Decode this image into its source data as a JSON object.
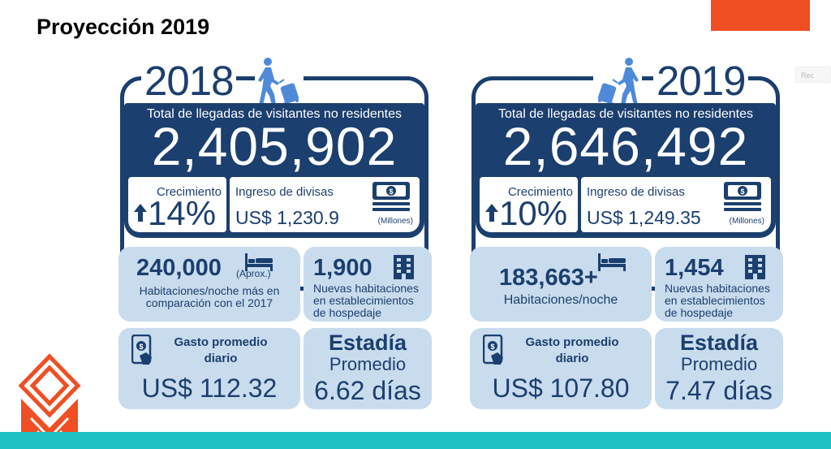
{
  "page": {
    "title": "Proyección 2019",
    "accent_color": "#f04e23",
    "bottom_bar_color": "#1fc1c3",
    "navy": "#1b3f6e",
    "card_color": "#c8dcee",
    "ghost_label": "Rec"
  },
  "panels": [
    {
      "year": "2018",
      "total_label": "Total de llegadas de visitantes no residentes",
      "total_value": "2,405,902",
      "growth_label": "Crecimiento",
      "growth_value": "14%",
      "currency_label": "Ingreso de divisas",
      "currency_value": "US$ 1,230.9",
      "currency_unit": "(Millones)",
      "rooms_value": "240,000",
      "rooms_approx": "(Aprox.)",
      "rooms_sub": "Habitaciones/noche más en comparación con el 2017",
      "new_rooms_value": "1,900",
      "new_rooms_sub": "Nuevas habitaciones en establecimientos de hospedaje",
      "spend_label": "Gasto promedio diario",
      "spend_value": "US$ 112.32",
      "stay_label": "Estadía",
      "stay_sub": "Promedio",
      "stay_value": "6.62 días",
      "icons": [
        "traveler-icon",
        "arrow-up-icon",
        "money-icon",
        "bed-icon",
        "building-icon",
        "phone-payment-icon"
      ]
    },
    {
      "year": "2019",
      "total_label": "Total de llegadas de visitantes no residentes",
      "total_value": "2,646,492",
      "growth_label": "Crecimiento",
      "growth_value": "10%",
      "currency_label": "Ingreso de divisas",
      "currency_value": "US$ 1,249.35",
      "currency_unit": "(Millones)",
      "rooms_value": "183,663+",
      "rooms_sub": "Habitaciones/noche",
      "new_rooms_value": "1,454",
      "new_rooms_sub": "Nuevas habitaciones en establecimientos de hospedaje",
      "spend_label": "Gasto promedio diario",
      "spend_value": "US$ 107.80",
      "stay_label": "Estadía",
      "stay_sub": "Promedio",
      "stay_value": "7.47 días",
      "icons": [
        "traveler-icon",
        "arrow-up-icon",
        "money-icon",
        "bed-icon",
        "building-icon",
        "phone-payment-icon"
      ]
    }
  ]
}
